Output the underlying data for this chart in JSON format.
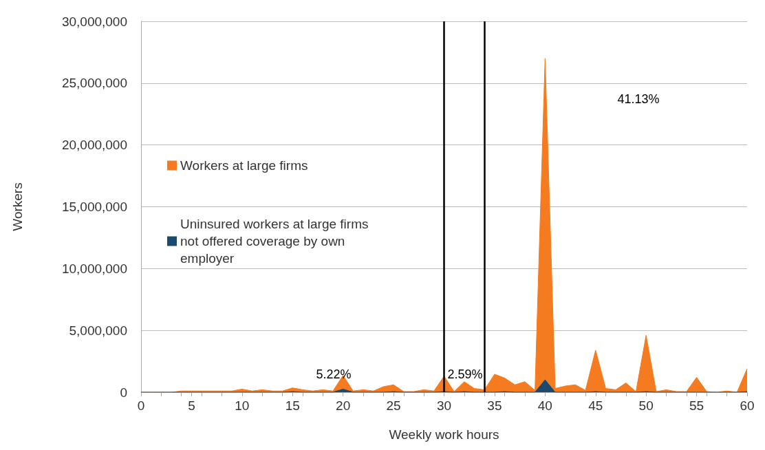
{
  "chart_data": {
    "type": "area",
    "xlabel": "Weekly work hours",
    "ylabel": "Workers",
    "x": [
      0,
      1,
      2,
      3,
      4,
      5,
      6,
      7,
      8,
      9,
      10,
      11,
      12,
      13,
      14,
      15,
      16,
      17,
      18,
      19,
      20,
      21,
      22,
      23,
      24,
      25,
      26,
      27,
      28,
      29,
      30,
      31,
      32,
      33,
      34,
      35,
      36,
      37,
      38,
      39,
      40,
      41,
      42,
      43,
      44,
      45,
      46,
      47,
      48,
      49,
      50,
      51,
      52,
      53,
      54,
      55,
      56,
      57,
      58,
      59,
      60
    ],
    "series": [
      {
        "name": "Workers at large firms",
        "color": "#f47b20",
        "values": [
          0,
          0,
          0,
          0,
          100000,
          100000,
          100000,
          100000,
          100000,
          100000,
          250000,
          100000,
          200000,
          100000,
          100000,
          350000,
          200000,
          100000,
          200000,
          100000,
          1350000,
          100000,
          200000,
          100000,
          450000,
          600000,
          50000,
          50000,
          200000,
          100000,
          1300000,
          50000,
          850000,
          300000,
          200000,
          1450000,
          1150000,
          600000,
          850000,
          150000,
          27000000,
          300000,
          500000,
          600000,
          150000,
          3400000,
          300000,
          200000,
          750000,
          50000,
          4600000,
          50000,
          200000,
          50000,
          50000,
          1200000,
          50000,
          0,
          100000,
          0,
          1900000
        ]
      },
      {
        "name": "Uninsured workers at large firms not offered coverage by own employer",
        "color": "#1b4a6e",
        "values": [
          0,
          0,
          0,
          0,
          0,
          0,
          0,
          0,
          0,
          0,
          0,
          0,
          0,
          0,
          0,
          50000,
          0,
          0,
          0,
          0,
          250000,
          0,
          0,
          0,
          0,
          50000,
          0,
          0,
          0,
          0,
          50000,
          0,
          50000,
          0,
          0,
          0,
          50000,
          0,
          0,
          0,
          1000000,
          0,
          0,
          0,
          0,
          50000,
          0,
          0,
          0,
          0,
          50000,
          0,
          0,
          0,
          0,
          0,
          0,
          0,
          0,
          0,
          50000
        ]
      }
    ],
    "xlim": [
      0,
      60
    ],
    "xticks": [
      0,
      5,
      10,
      15,
      20,
      25,
      30,
      35,
      40,
      45,
      50,
      55,
      60
    ],
    "ylim": [
      0,
      30000000
    ],
    "yticks": [
      0,
      {
        "value": 5000000,
        "label": "5,000,000"
      },
      {
        "value": 10000000,
        "label": "10,000,000"
      },
      {
        "value": 15000000,
        "label": "15,000,000"
      },
      {
        "value": 20000000,
        "label": "20,000,000"
      },
      {
        "value": 25000000,
        "label": "25,000,000"
      },
      {
        "value": 30000000,
        "label": "30,000,000"
      }
    ],
    "grid": "y",
    "legend": "left",
    "marker": "none",
    "ref_lines": [
      {
        "axis": "x",
        "value": 30,
        "color": "#000000"
      },
      {
        "axis": "x",
        "value": 34,
        "color": "#000000"
      }
    ],
    "annotations": [
      "5.22%",
      "2.59%",
      "41.13%"
    ]
  }
}
